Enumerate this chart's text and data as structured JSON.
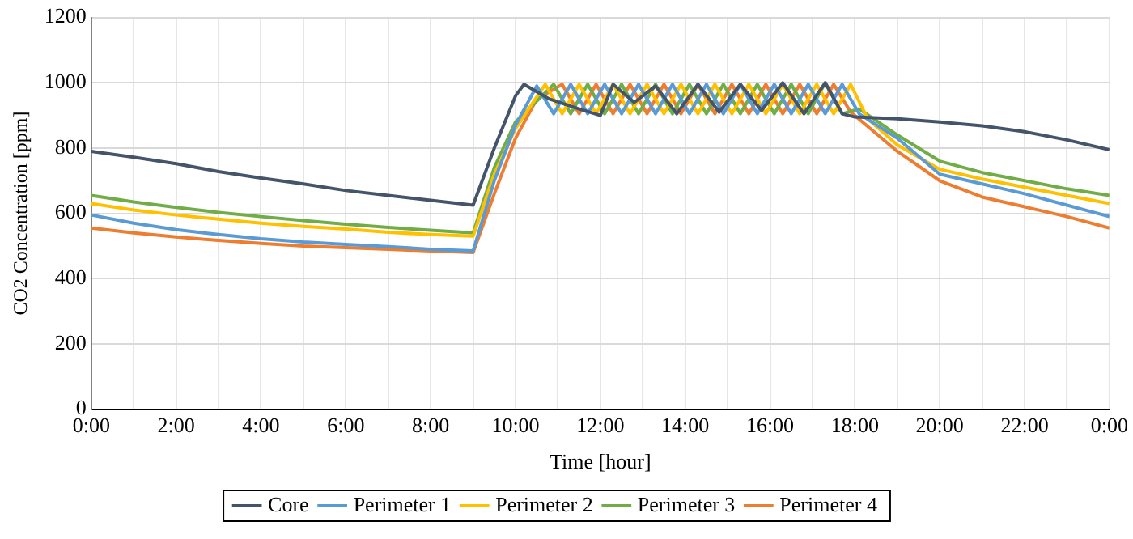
{
  "chart_data": {
    "type": "line",
    "xlabel": "Time [hour]",
    "ylabel": "CO2 Concentration [ppm]",
    "xlim": [
      0,
      24
    ],
    "xticks": [
      {
        "value": 0,
        "label": "0:00"
      },
      {
        "value": 1,
        "label": null
      },
      {
        "value": 2,
        "label": "2:00"
      },
      {
        "value": 3,
        "label": null
      },
      {
        "value": 4,
        "label": "4:00"
      },
      {
        "value": 5,
        "label": null
      },
      {
        "value": 6,
        "label": "6:00"
      },
      {
        "value": 7,
        "label": null
      },
      {
        "value": 8,
        "label": "8:00"
      },
      {
        "value": 9,
        "label": null
      },
      {
        "value": 10,
        "label": "10:00"
      },
      {
        "value": 11,
        "label": null
      },
      {
        "value": 12,
        "label": "12:00"
      },
      {
        "value": 13,
        "label": null
      },
      {
        "value": 14,
        "label": "14:00"
      },
      {
        "value": 15,
        "label": null
      },
      {
        "value": 16,
        "label": "16:00"
      },
      {
        "value": 17,
        "label": null
      },
      {
        "value": 18,
        "label": "18:00"
      },
      {
        "value": 19,
        "label": null
      },
      {
        "value": 20,
        "label": "20:00"
      },
      {
        "value": 21,
        "label": null
      },
      {
        "value": 22,
        "label": "22:00"
      },
      {
        "value": 23,
        "label": null
      },
      {
        "value": 24,
        "label": "0:00"
      }
    ],
    "ylim": [
      0,
      1200
    ],
    "yticks": [
      0,
      200,
      400,
      600,
      800,
      1000,
      1200
    ],
    "grid": true,
    "legend": "bottom",
    "marker": "none",
    "line_style": "solid",
    "series": [
      {
        "name": "Core",
        "color": "#44546a",
        "x": [
          0,
          1,
          2,
          3,
          4,
          5,
          6,
          7,
          8,
          9,
          9.5,
          10,
          10.2,
          10.8,
          11.5,
          12,
          12.3,
          12.8,
          13.3,
          13.8,
          14.3,
          14.8,
          15.3,
          15.8,
          16.3,
          16.8,
          17.3,
          17.7,
          18,
          19,
          20,
          21,
          22,
          23,
          24
        ],
        "values": [
          790,
          772,
          752,
          728,
          708,
          690,
          670,
          655,
          640,
          625,
          800,
          960,
          995,
          950,
          920,
          900,
          995,
          940,
          990,
          905,
          995,
          910,
          995,
          915,
          1000,
          905,
          1000,
          905,
          895,
          890,
          880,
          868,
          850,
          825,
          795
        ]
      },
      {
        "name": "Perimeter 1",
        "color": "#5b9bd5",
        "x": [
          0,
          1,
          2,
          3,
          4,
          5,
          6,
          7,
          8,
          9,
          9.5,
          10,
          10.5,
          10.9,
          11.3,
          11.7,
          12.1,
          12.5,
          12.9,
          13.3,
          13.7,
          14.1,
          14.5,
          14.9,
          15.3,
          15.7,
          16.1,
          16.5,
          16.9,
          17.3,
          17.7,
          18.1,
          19,
          20,
          21,
          22,
          23,
          24
        ],
        "values": [
          595,
          570,
          550,
          535,
          522,
          512,
          505,
          498,
          490,
          485,
          700,
          870,
          990,
          905,
          995,
          905,
          995,
          905,
          995,
          905,
          995,
          905,
          995,
          905,
          995,
          905,
          995,
          905,
          995,
          905,
          995,
          905,
          830,
          720,
          690,
          660,
          625,
          590
        ]
      },
      {
        "name": "Perimeter 2",
        "color": "#ffc000",
        "x": [
          0,
          1,
          2,
          3,
          4,
          5,
          6,
          7,
          8,
          9,
          9.5,
          10,
          10.7,
          11.1,
          11.5,
          11.9,
          12.3,
          12.7,
          13.1,
          13.5,
          13.9,
          14.3,
          14.7,
          15.1,
          15.5,
          15.9,
          16.3,
          16.7,
          17.1,
          17.5,
          17.9,
          18.3,
          19,
          20,
          21,
          22,
          23,
          24
        ],
        "values": [
          630,
          610,
          595,
          582,
          570,
          560,
          552,
          542,
          535,
          530,
          720,
          860,
          995,
          905,
          995,
          905,
          995,
          905,
          995,
          905,
          995,
          905,
          995,
          905,
          995,
          905,
          995,
          905,
          995,
          905,
          995,
          890,
          810,
          735,
          705,
          680,
          655,
          630
        ]
      },
      {
        "name": "Perimeter 3",
        "color": "#70ad47",
        "x": [
          0,
          1,
          2,
          3,
          4,
          5,
          6,
          7,
          8,
          9,
          9.5,
          10,
          10.9,
          11.3,
          11.7,
          12.1,
          12.5,
          12.9,
          13.3,
          13.7,
          14.1,
          14.5,
          14.9,
          15.3,
          15.7,
          16.1,
          16.5,
          16.9,
          17.3,
          17.7,
          18.1,
          19,
          20,
          21,
          22,
          23,
          24
        ],
        "values": [
          655,
          635,
          618,
          603,
          590,
          578,
          567,
          557,
          548,
          540,
          740,
          880,
          995,
          905,
          995,
          905,
          995,
          905,
          995,
          905,
          995,
          905,
          995,
          905,
          995,
          905,
          995,
          905,
          1000,
          905,
          920,
          840,
          760,
          725,
          700,
          675,
          655
        ]
      },
      {
        "name": "Perimeter 4",
        "color": "#ed7d31",
        "x": [
          0,
          1,
          2,
          3,
          4,
          5,
          6,
          7,
          8,
          9,
          9.5,
          10,
          10.5,
          11.1,
          11.5,
          11.9,
          12.3,
          12.7,
          13.1,
          13.5,
          13.9,
          14.3,
          14.7,
          15.1,
          15.5,
          15.9,
          16.3,
          16.7,
          17.1,
          17.5,
          17.9,
          19,
          20,
          21,
          22,
          23,
          24
        ],
        "values": [
          555,
          540,
          528,
          517,
          508,
          500,
          495,
          490,
          485,
          480,
          660,
          830,
          950,
          995,
          905,
          995,
          905,
          995,
          905,
          995,
          905,
          995,
          905,
          995,
          905,
          995,
          905,
          995,
          905,
          995,
          910,
          790,
          700,
          650,
          620,
          590,
          555
        ]
      }
    ]
  }
}
